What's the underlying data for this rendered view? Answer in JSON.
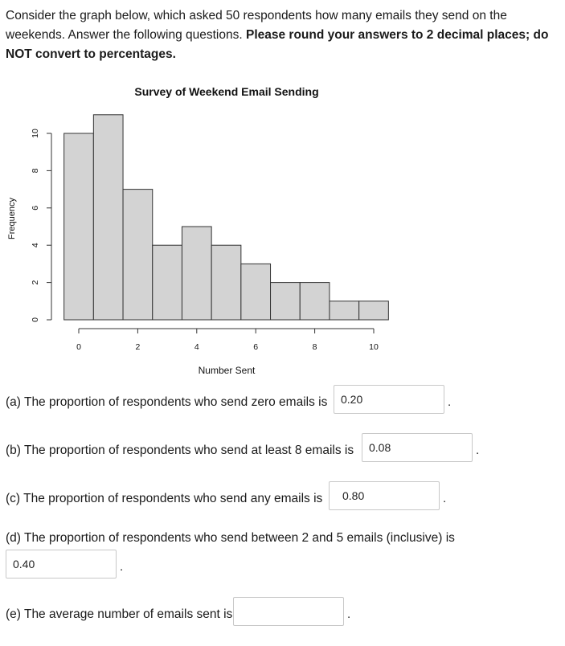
{
  "intro": {
    "text": "Consider the graph below, which asked 50 respondents how many emails they send on the weekends.  Answer the following questions.  ",
    "bold_text": "Please round your answers to 2 decimal places; do NOT convert to percentages."
  },
  "chart_data": {
    "type": "bar",
    "title": "Survey of Weekend Email Sending",
    "xlabel": "Number Sent",
    "ylabel": "Frequency",
    "bin_edges": [
      0,
      1,
      2,
      3,
      4,
      5,
      6,
      7,
      8,
      9,
      10,
      11
    ],
    "values": [
      10,
      11,
      7,
      4,
      5,
      4,
      3,
      2,
      2,
      1,
      1
    ],
    "xlim": [
      0,
      10
    ],
    "ylim": [
      0,
      10
    ],
    "x_ticks": [
      "0",
      "2",
      "4",
      "6",
      "8",
      "10"
    ],
    "y_ticks": [
      "0",
      "2",
      "4",
      "6",
      "8",
      "10"
    ],
    "bar_color": "#d3d3d3",
    "grid": false
  },
  "questions": [
    {
      "id": "a",
      "text": "(a) The proportion of respondents who send zero emails is",
      "answer": "0.20"
    },
    {
      "id": "b",
      "text": "(b) The proportion of respondents who send at least 8 emails is",
      "answer": "0.08"
    },
    {
      "id": "c",
      "text": "(c) The proportion of respondents who send any emails is",
      "answer": "0.80"
    },
    {
      "id": "d",
      "text": "(d) The proportion of respondents who send between 2 and 5 emails (inclusive) is",
      "answer": "0.40"
    },
    {
      "id": "e",
      "text": "(e) The average number of emails sent is",
      "answer": ""
    }
  ],
  "period": "."
}
